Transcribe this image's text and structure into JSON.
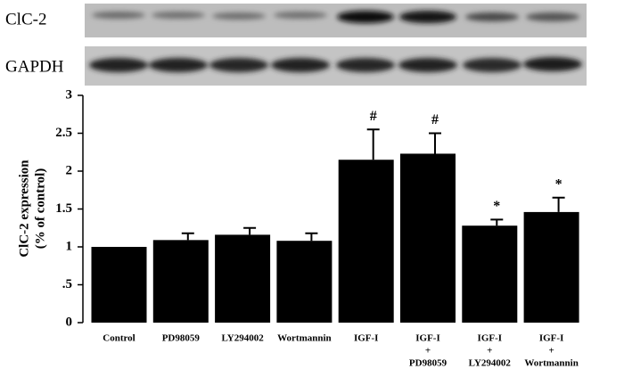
{
  "chart_data": {
    "type": "bar",
    "blots": [
      {
        "label": "ClC-2"
      },
      {
        "label": "GAPDH"
      }
    ],
    "ylabel": [
      "ClC-2 expression",
      "(% of control)"
    ],
    "categories": [
      [
        "Control"
      ],
      [
        "PD98059"
      ],
      [
        "LY294002"
      ],
      [
        "Wortmannin"
      ],
      [
        "IGF-I"
      ],
      [
        "IGF-I",
        "+",
        "PD98059"
      ],
      [
        "IGF-I",
        "+",
        "LY294002"
      ],
      [
        "IGF-I",
        "+",
        "Wortmannin"
      ]
    ],
    "values": [
      1.0,
      1.09,
      1.16,
      1.08,
      2.15,
      2.23,
      1.28,
      1.46
    ],
    "errors": [
      0,
      0.09,
      0.09,
      0.1,
      0.4,
      0.27,
      0.08,
      0.19
    ],
    "significance": [
      null,
      null,
      null,
      null,
      "#",
      "#",
      "*",
      "*"
    ],
    "color": "#000000",
    "ylim": [
      0,
      3
    ],
    "yticks": [
      0,
      {
        "value": 0.5,
        "label": ".5"
      },
      1,
      1.5,
      2,
      2.5,
      3
    ]
  }
}
